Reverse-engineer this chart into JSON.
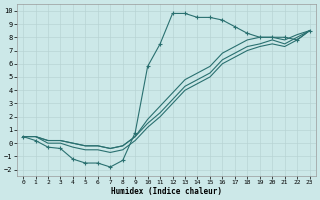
{
  "xlabel": "Humidex (Indice chaleur)",
  "xlim": [
    -0.5,
    23.5
  ],
  "ylim": [
    -2.5,
    10.5
  ],
  "xticks": [
    0,
    1,
    2,
    3,
    4,
    5,
    6,
    7,
    8,
    9,
    10,
    11,
    12,
    13,
    14,
    15,
    16,
    17,
    18,
    19,
    20,
    21,
    22,
    23
  ],
  "yticks": [
    -2,
    -1,
    0,
    1,
    2,
    3,
    4,
    5,
    6,
    7,
    8,
    9,
    10
  ],
  "bg_color": "#cce8e8",
  "grid_color": "#b8d4d4",
  "line_color": "#2a7070",
  "wavy_x": [
    0,
    1,
    2,
    3,
    4,
    5,
    6,
    7,
    8,
    9,
    10,
    11,
    12,
    13,
    14,
    15,
    16,
    17,
    18,
    19,
    20,
    21,
    22,
    23
  ],
  "wavy_y": [
    0.5,
    0.2,
    -0.3,
    -0.4,
    -1.2,
    -1.5,
    -1.5,
    -1.8,
    -1.3,
    0.8,
    5.8,
    7.5,
    9.8,
    9.8,
    9.5,
    9.5,
    9.3,
    8.8,
    8.3,
    8.0,
    8.0,
    8.0,
    7.8,
    8.5
  ],
  "line1_x": [
    0,
    1,
    2,
    3,
    4,
    5,
    6,
    7,
    8,
    9,
    10,
    11,
    12,
    13,
    14,
    15,
    16,
    17,
    18,
    19,
    20,
    21,
    22,
    23
  ],
  "line1_y": [
    0.5,
    0.5,
    0.2,
    0.2,
    0.0,
    -0.2,
    -0.2,
    -0.4,
    -0.2,
    0.5,
    1.8,
    2.8,
    3.8,
    4.8,
    5.3,
    5.8,
    6.8,
    7.3,
    7.8,
    8.0,
    8.0,
    7.8,
    8.2,
    8.5
  ],
  "line2_x": [
    0,
    1,
    2,
    3,
    4,
    5,
    6,
    7,
    8,
    9,
    10,
    11,
    12,
    13,
    14,
    15,
    16,
    17,
    18,
    19,
    20,
    21,
    22,
    23
  ],
  "line2_y": [
    0.5,
    0.5,
    0.2,
    0.2,
    0.0,
    -0.2,
    -0.2,
    -0.4,
    -0.2,
    0.5,
    1.5,
    2.3,
    3.3,
    4.3,
    4.8,
    5.3,
    6.3,
    6.8,
    7.3,
    7.5,
    7.8,
    7.5,
    8.0,
    8.5
  ],
  "line3_x": [
    0,
    1,
    2,
    3,
    4,
    5,
    6,
    7,
    8,
    9,
    10,
    11,
    12,
    13,
    14,
    15,
    16,
    17,
    18,
    19,
    20,
    21,
    22,
    23
  ],
  "line3_y": [
    0.5,
    0.5,
    0.0,
    0.0,
    -0.3,
    -0.5,
    -0.5,
    -0.7,
    -0.5,
    0.2,
    1.2,
    2.0,
    3.0,
    4.0,
    4.5,
    5.0,
    6.0,
    6.5,
    7.0,
    7.3,
    7.5,
    7.3,
    7.8,
    8.5
  ]
}
